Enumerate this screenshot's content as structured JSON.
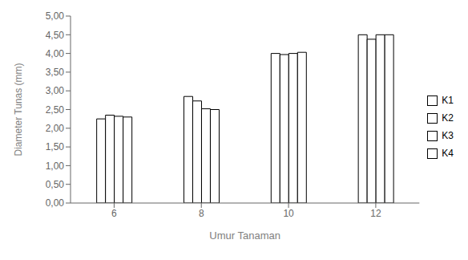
{
  "chart_data": {
    "type": "bar",
    "xlabel": "Umur Tanaman",
    "ylabel": "Diameter Tunas (mm)",
    "categories": [
      "6",
      "8",
      "10",
      "12"
    ],
    "series": [
      {
        "name": "K1",
        "color": "#ffffff",
        "values": [
          2.25,
          2.85,
          4.0,
          4.5
        ]
      },
      {
        "name": "K2",
        "color": "#ffffff",
        "values": [
          2.35,
          2.73,
          3.97,
          4.38
        ]
      },
      {
        "name": "K3",
        "color": "#ffffff",
        "values": [
          2.32,
          2.52,
          4.0,
          4.5
        ]
      },
      {
        "name": "K4",
        "color": "#ffffff",
        "values": [
          2.3,
          2.5,
          4.03,
          4.5
        ]
      }
    ],
    "ylim": [
      0,
      5.0
    ],
    "yticks": [
      {
        "value": 0.0,
        "label": "0,00"
      },
      {
        "value": 0.5,
        "label": "0,50"
      },
      {
        "value": 1.0,
        "label": "1,00"
      },
      {
        "value": 1.5,
        "label": "1,50"
      },
      {
        "value": 2.0,
        "label": "2,00"
      },
      {
        "value": 2.5,
        "label": "2,50"
      },
      {
        "value": 3.0,
        "label": "3,00"
      },
      {
        "value": 3.5,
        "label": "3,50"
      },
      {
        "value": 4.0,
        "label": "4,00"
      },
      {
        "value": 4.5,
        "label": "4,50"
      },
      {
        "value": 5.0,
        "label": "5,00"
      }
    ],
    "legend": "right"
  }
}
